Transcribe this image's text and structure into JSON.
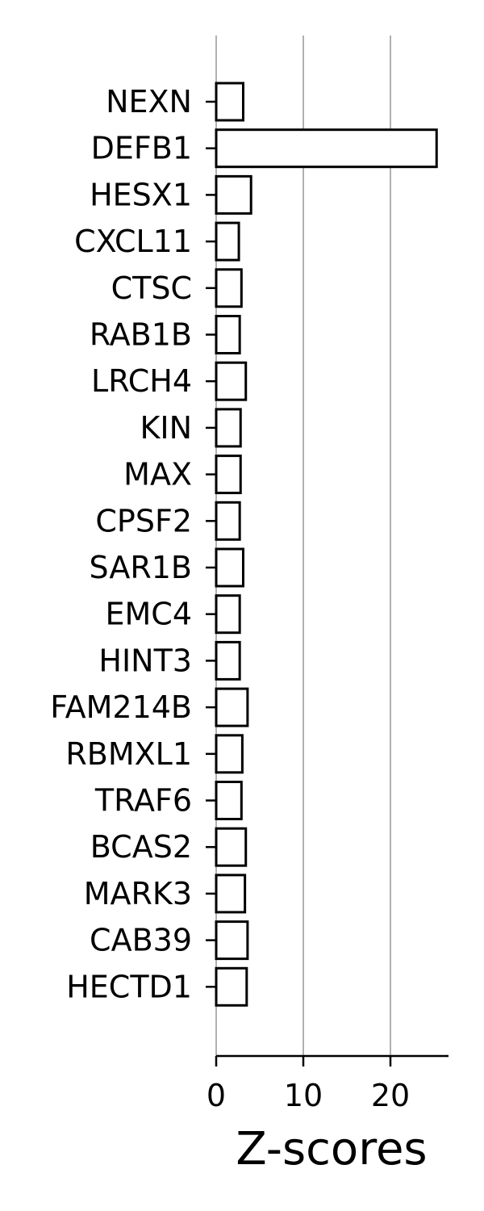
{
  "chart_data": {
    "type": "bar",
    "orientation": "horizontal",
    "categories": [
      "NEXN",
      "DEFB1",
      "HESX1",
      "CXCL11",
      "CTSC",
      "RAB1B",
      "LRCH4",
      "KIN",
      "MAX",
      "CPSF2",
      "SAR1B",
      "EMC4",
      "HINT3",
      "FAM214B",
      "RBMXL1",
      "TRAF6",
      "BCAS2",
      "MARK3",
      "CAB39",
      "HECTD1"
    ],
    "values": [
      3.1,
      25.3,
      4.0,
      2.6,
      2.9,
      2.7,
      3.4,
      2.8,
      2.8,
      2.7,
      3.1,
      2.7,
      2.7,
      3.6,
      3.0,
      2.9,
      3.4,
      3.3,
      3.6,
      3.5
    ],
    "xlabel": "Z-scores",
    "ylabel": "",
    "title": "",
    "xlim": [
      0,
      26.5
    ],
    "x_ticks": [
      "0",
      "10",
      "20"
    ],
    "x_tick_values": [
      0,
      10,
      20
    ],
    "grid": "vertical",
    "legend": "none",
    "colors": {
      "bar_fill": "#ffffff",
      "bar_edge": "#000000",
      "grid": "#b0b0b0",
      "axis": "#000000"
    }
  }
}
